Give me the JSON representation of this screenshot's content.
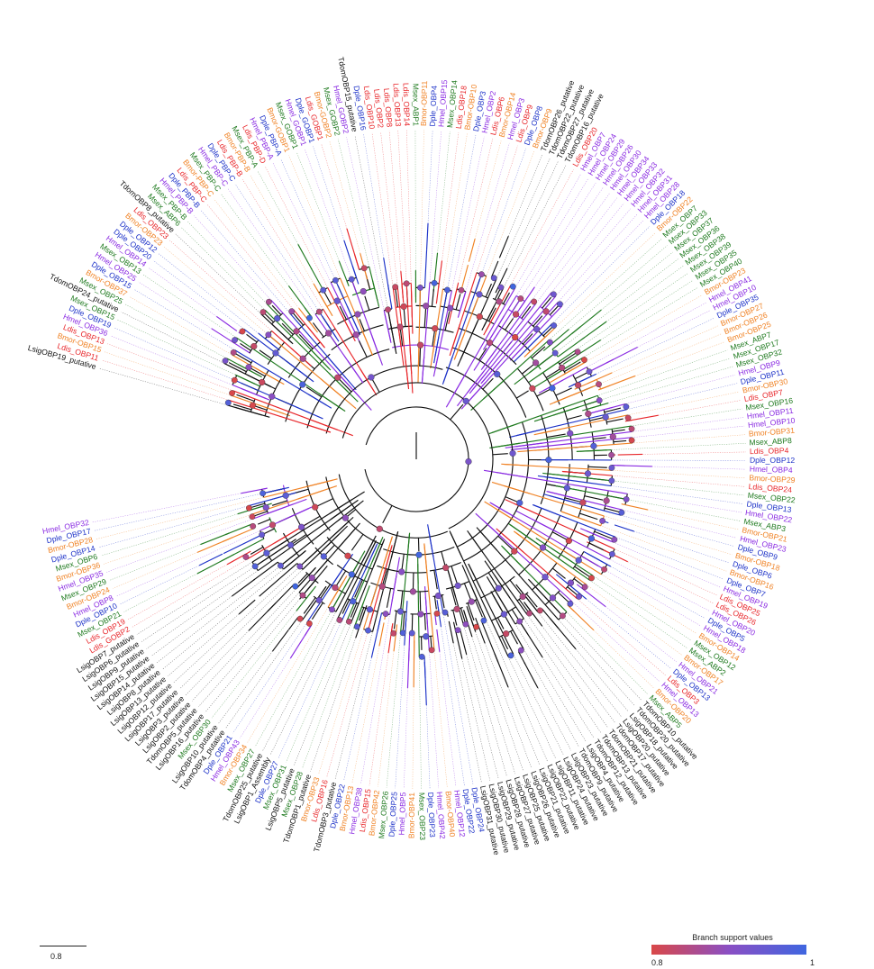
{
  "colors": {
    "Ldis": "#e8262a",
    "Bmor": "#f08326",
    "Hmel": "#8a2be2",
    "Dple": "#1d32c8",
    "Msex": "#1f7a1f",
    "Lsig": "#111111",
    "Tdom": "#111111"
  },
  "tips": [
    "LsigOBP19_putative",
    "Ldis_OBP11",
    "Bmor-OBP15",
    "Ldis_OBP13",
    "Hmel_OBP36",
    "Dple_OBP19",
    "Msex_OBP15",
    "TdomOBP24_putative",
    "Msex_OBP25",
    "Bmor-OBP37",
    "Dple_OBP15",
    "Hmel_OBP25",
    "Msex_OBP13",
    "Hmel_OBP14",
    "Dple_OBP20",
    "Dple_OBP12",
    "Bmor-OBP23",
    "Ldis_OBP23",
    "TdomOBP8_putative",
    "Msex_ABP6",
    "Msex_PBP-B",
    "Hmel_PBP-B",
    "Dple_PBP-B",
    "Ldis_PBP-C",
    "Bmor-PBP-C",
    "Msex_PBP-C",
    "Hmel_PBP-C",
    "Dple_PBP-C",
    "Ldis_PBP-B",
    "Bmor-PBP-B",
    "Msex_PBP-A",
    "Ldis_PBP-D",
    "Hmel_PBP-A",
    "Dple_PBP-A",
    "Bmor-GOBP1",
    "Msex_GOBP1",
    "Hmel_GOBP1",
    "Dple_GOBP1",
    "Ldis_GOBP1",
    "Bmor-GOBP2",
    "Msex_GOBP2",
    "Hmel_GOBP2",
    "TdomOBP15_putative",
    "Dple_OBP16",
    "Ldis_OBP10",
    "Ldis_OBP2",
    "Ldis_OBP8",
    "Ldis_OBP13",
    "Ldis_OBP14",
    "Msex_ABP1",
    "Bmor-OBP11",
    "Dple_OBP4",
    "Hmel_OBP15",
    "Msex_OBP14",
    "Ldis_OBP18",
    "Bmor-OBP10",
    "Dple_OBP3",
    "Hmel_OBP2",
    "Ldis_OBP6",
    "Bmor-OBP14",
    "Hmel_OBP3",
    "Ldis_OBP9",
    "Dple_OBP8",
    "Bmor-OBP9",
    "TdomOBP26_putative",
    "TdomOBP22_putative",
    "TdomOBP27_putative",
    "TdomOBP16_putative",
    "Ldis_OBP20",
    "Hmel_OBP7",
    "Hmel_OBP24",
    "Hmel_OBP29",
    "Hmel_OBP26",
    "Hmel_OBP30",
    "Hmel_OBP34",
    "Hmel_OBP33",
    "Hmel_OBP32",
    "Hmel_OBP31",
    "Hmel_OBP28",
    "Dple_OBP18",
    "Bmor-OBP22",
    "Msex_OBP7",
    "Msex_OBP33",
    "Msex_OBP37",
    "Msex_OBP36",
    "Msex_OBP38",
    "Msex_OBP39",
    "Msex_OBP35",
    "Msex_OBP40",
    "Bmor-OBP23",
    "Hmel_OBP41",
    "Hmel_OBP10",
    "Dple_OBP35",
    "Bmor-OBP27",
    "Bmor-OBP26",
    "Bmor-OBP25",
    "Msex_ABP7",
    "Msex_OBP17",
    "Msex_OBP32",
    "Hmel_OBP9",
    "Dple_OBP11",
    "Bmor-OBP30",
    "Ldis_OBP7",
    "Msex_OBP16",
    "Hmel_OBP11",
    "Hmel_OBP10",
    "Bmor-OBP31",
    "Msex_ABP8",
    "Ldis_OBP4",
    "Dple_OBP12",
    "Hmel_OBP4",
    "Bmor-OBP29",
    "Ldis_OBP24",
    "Msex_OBP22",
    "Dple_OBP13",
    "Hmel_OBP22",
    "Msex_ABP3",
    "Bmor-OBP21",
    "Hmel_OBP23",
    "Dple_OBP9",
    "Bmor-OBP18",
    "Dple_OBP6",
    "Bmor-OBP16",
    "Dple_OBP7",
    "Hmel_OBP19",
    "Ldis_OBP25",
    "Ldis_OBP26",
    "Hmel_OBP20",
    "Dple_OBP5",
    "Hmel_OBP18",
    "Bmor-OBP14",
    "Msex_OBP12",
    "Msex_ABP2",
    "Bmor-OBP17",
    "Hmel_OBP21",
    "Dple_OBP13",
    "Ldis_OBP3",
    "Hmel_OBP13",
    "Bmor-OBP20",
    "Msex_ABP5",
    "TdomOBP10_putative",
    "TdomOBP20_putative",
    "LsigOBP18_putative",
    "LsigOBP20_putative",
    "TdomOBP17_putative",
    "TdomOBP21_putative",
    "TdomOBP13_putative",
    "TdomOBP12_putative",
    "LsigOBP4_putative",
    "TdomOBP9_putative",
    "LsigOBP23_putative",
    "LsigOBP24_putative",
    "LsigOBP11_putative",
    "LsigOBP22_putative",
    "LsigOBP21_putative",
    "LsigOBP26_putative",
    "LsigOBP25_putative",
    "LsigOBP27_putative",
    "LsigOBP28_putative",
    "LsigOBP29_putative",
    "LsigOBP30_putative",
    "LsigOBP31_putative",
    "Dple_OBP24",
    "Dple_OBP22",
    "Hmel_OBP12",
    "Bmor-OBP40",
    "Hmel_OBP42",
    "Dple_OBP23",
    "Msex_OBP23",
    "Bmor-OBP41",
    "Hmel_OBP5",
    "Dple_OBP25",
    "Msex_OBP26",
    "Bmor-OBP42",
    "Ldis_OBP15",
    "Hmel_OBP38",
    "Bmor-OBP13",
    "Dple_OBP22",
    "TdomOBP3_putative",
    "Ldis_OBP16",
    "Bmor-OBP33",
    "TdomOBP1_putative",
    "Msex_OBP28",
    "LsigOBP5_putative",
    "Msex_OBP31",
    "Dple_OBP27",
    "LsigOBP1_Assembly",
    "TdomOBP25_putative",
    "Msex_OBP27",
    "Bmor-OBP34",
    "Hmel_OBP43",
    "Dple_OBP21",
    "TdomOBP4_putative",
    "LsigOBP10_putative",
    "Msex_OBP30",
    "LsigOBP16_putative",
    "TdomOBP5_putative",
    "LsigOBP2_putative",
    "LsigOBP3_putative",
    "LsigOBP17_putative",
    "LsigOBP12_putative",
    "LsigOBP13_putative",
    "LsigOBP8_putative",
    "LsigOBP14_putative",
    "LsigOBP15_putative",
    "LsigOBP9_putative",
    "LsigOBP6_putative",
    "LsigOBP7_putative",
    "Ldis_GOBP2",
    "Ldis_OBP19",
    "Msex_OBP21",
    "Dple_OBP10",
    "Hmel_OBP8",
    "Bmor-OBP24",
    "Msex_OBP29",
    "Hmel_OBP35",
    "Bmor-OBP36",
    "Msex_OBP6",
    "Dple_OBP14",
    "Bmor-OBP28",
    "Dple_OBP17",
    "Hmel_OBP32"
  ],
  "legend": {
    "title": "Branch support values",
    "min": "0.8",
    "max": "1"
  },
  "scale_bar": {
    "label": "0.8"
  }
}
